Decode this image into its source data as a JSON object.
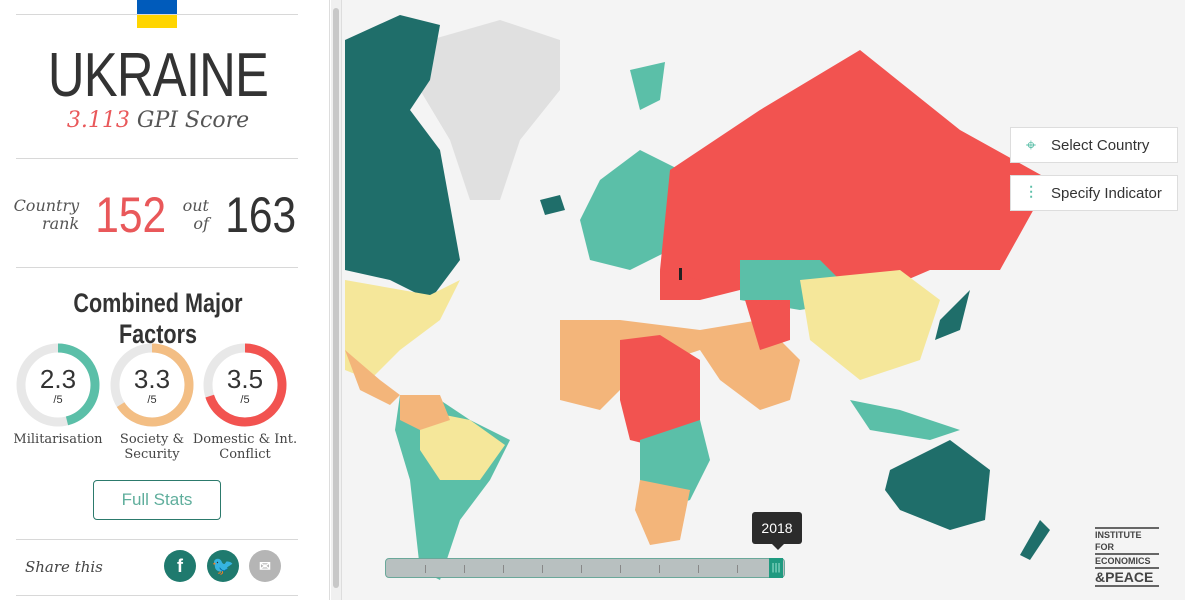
{
  "country": {
    "name": "UKRAINE",
    "score": "3.113",
    "score_label": "GPI Score",
    "flag_colors": [
      "#005bbb",
      "#ffd500"
    ]
  },
  "rank": {
    "label_1": "Country",
    "label_2": "rank",
    "value": "152",
    "out_1": "out",
    "out_2": "of",
    "total": "163"
  },
  "factors": {
    "title": "Combined Major Factors",
    "items": [
      {
        "value": "2.3",
        "out_of": "/5",
        "label": "Militarisation",
        "fraction": 0.46,
        "color": "#5bbfa8"
      },
      {
        "value": "3.3",
        "out_of": "/5",
        "label": "Society & Security",
        "fraction": 0.66,
        "color": "#f3be84"
      },
      {
        "value": "3.5",
        "out_of": "/5",
        "label": "Domestic & Int. Conflict",
        "fraction": 0.7,
        "color": "#f25350"
      }
    ]
  },
  "full_stats": "Full Stats",
  "share": {
    "label": "Share this",
    "icons": [
      "facebook-icon",
      "twitter-icon",
      "email-icon"
    ]
  },
  "controls": {
    "select_country": "Select Country",
    "specify_indicator": "Specify Indicator"
  },
  "timeline": {
    "year": "2018"
  },
  "logo": {
    "line1": "INSTITUTE FOR",
    "line2": "ECONOMICS",
    "line3": "&PEACE"
  },
  "colors": {
    "very_high": "#1f6e6a",
    "high": "#5bbfa8",
    "medium": "#f5e79a",
    "low": "#f3b57a",
    "very_low": "#f25350",
    "no_data": "#e0e0e0"
  }
}
